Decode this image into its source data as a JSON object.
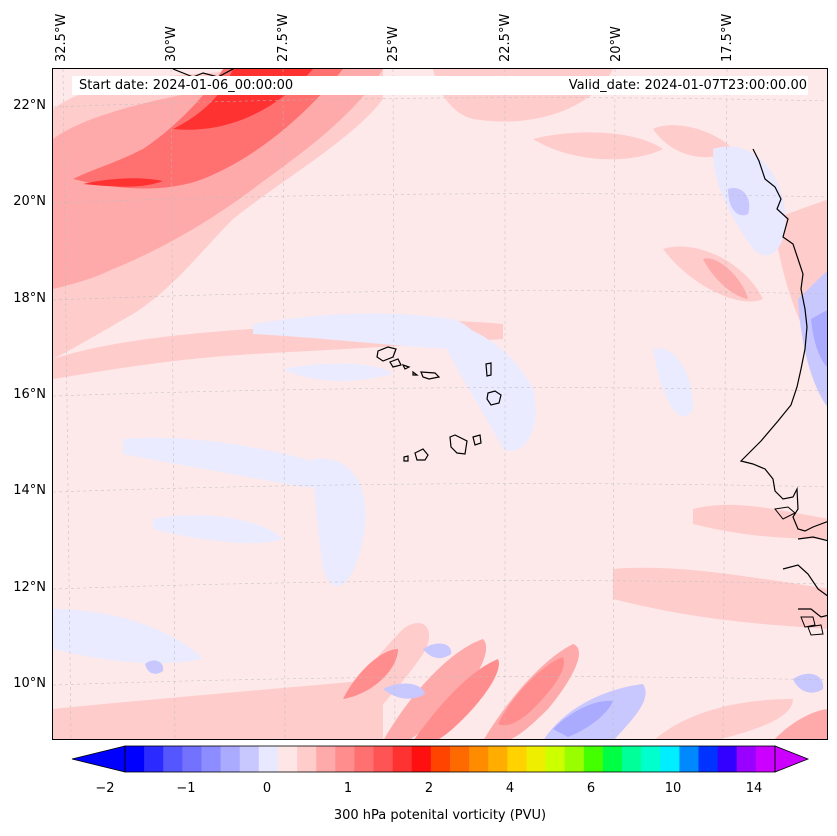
{
  "map": {
    "start_date": "Start date: 2024-01-06_00:00:00",
    "valid_date": "Valid_date: 2024-01-07T23:00:00.00",
    "longitude_labels": [
      "32.5°W",
      "30°W",
      "27.5°W",
      "25°W",
      "22.5°W",
      "20°W",
      "17.5°W"
    ],
    "latitude_labels": [
      "22°N",
      "20°N",
      "18°N",
      "16°N",
      "14°N",
      "12°N",
      "10°N"
    ],
    "background_color": "#fde9ea",
    "coastline_color": "#000000"
  },
  "colorbar": {
    "label": "300 hPa potenital vorticity (PVU)",
    "ticks": [
      "−2",
      "−1",
      "0",
      "1",
      "2",
      "4",
      "6",
      "10",
      "14"
    ],
    "colors": [
      "#0000ff",
      "#2b2bff",
      "#5656ff",
      "#7272ff",
      "#8d8dff",
      "#aaaaff",
      "#c8c8ff",
      "#e8e8ff",
      "#ffe6e6",
      "#ffcccc",
      "#ffaaaa",
      "#ff8d8d",
      "#ff7070",
      "#ff5454",
      "#ff3232",
      "#ff1010",
      "#ff4400",
      "#ff6a00",
      "#ff8c00",
      "#ffae00",
      "#ffd200",
      "#eeee00",
      "#ccff00",
      "#99ff00",
      "#44ff00",
      "#00ff44",
      "#00ff99",
      "#00ffcc",
      "#00eeff",
      "#0088ff",
      "#0033ff",
      "#3300ff",
      "#9900ff",
      "#cc00ff"
    ]
  }
}
